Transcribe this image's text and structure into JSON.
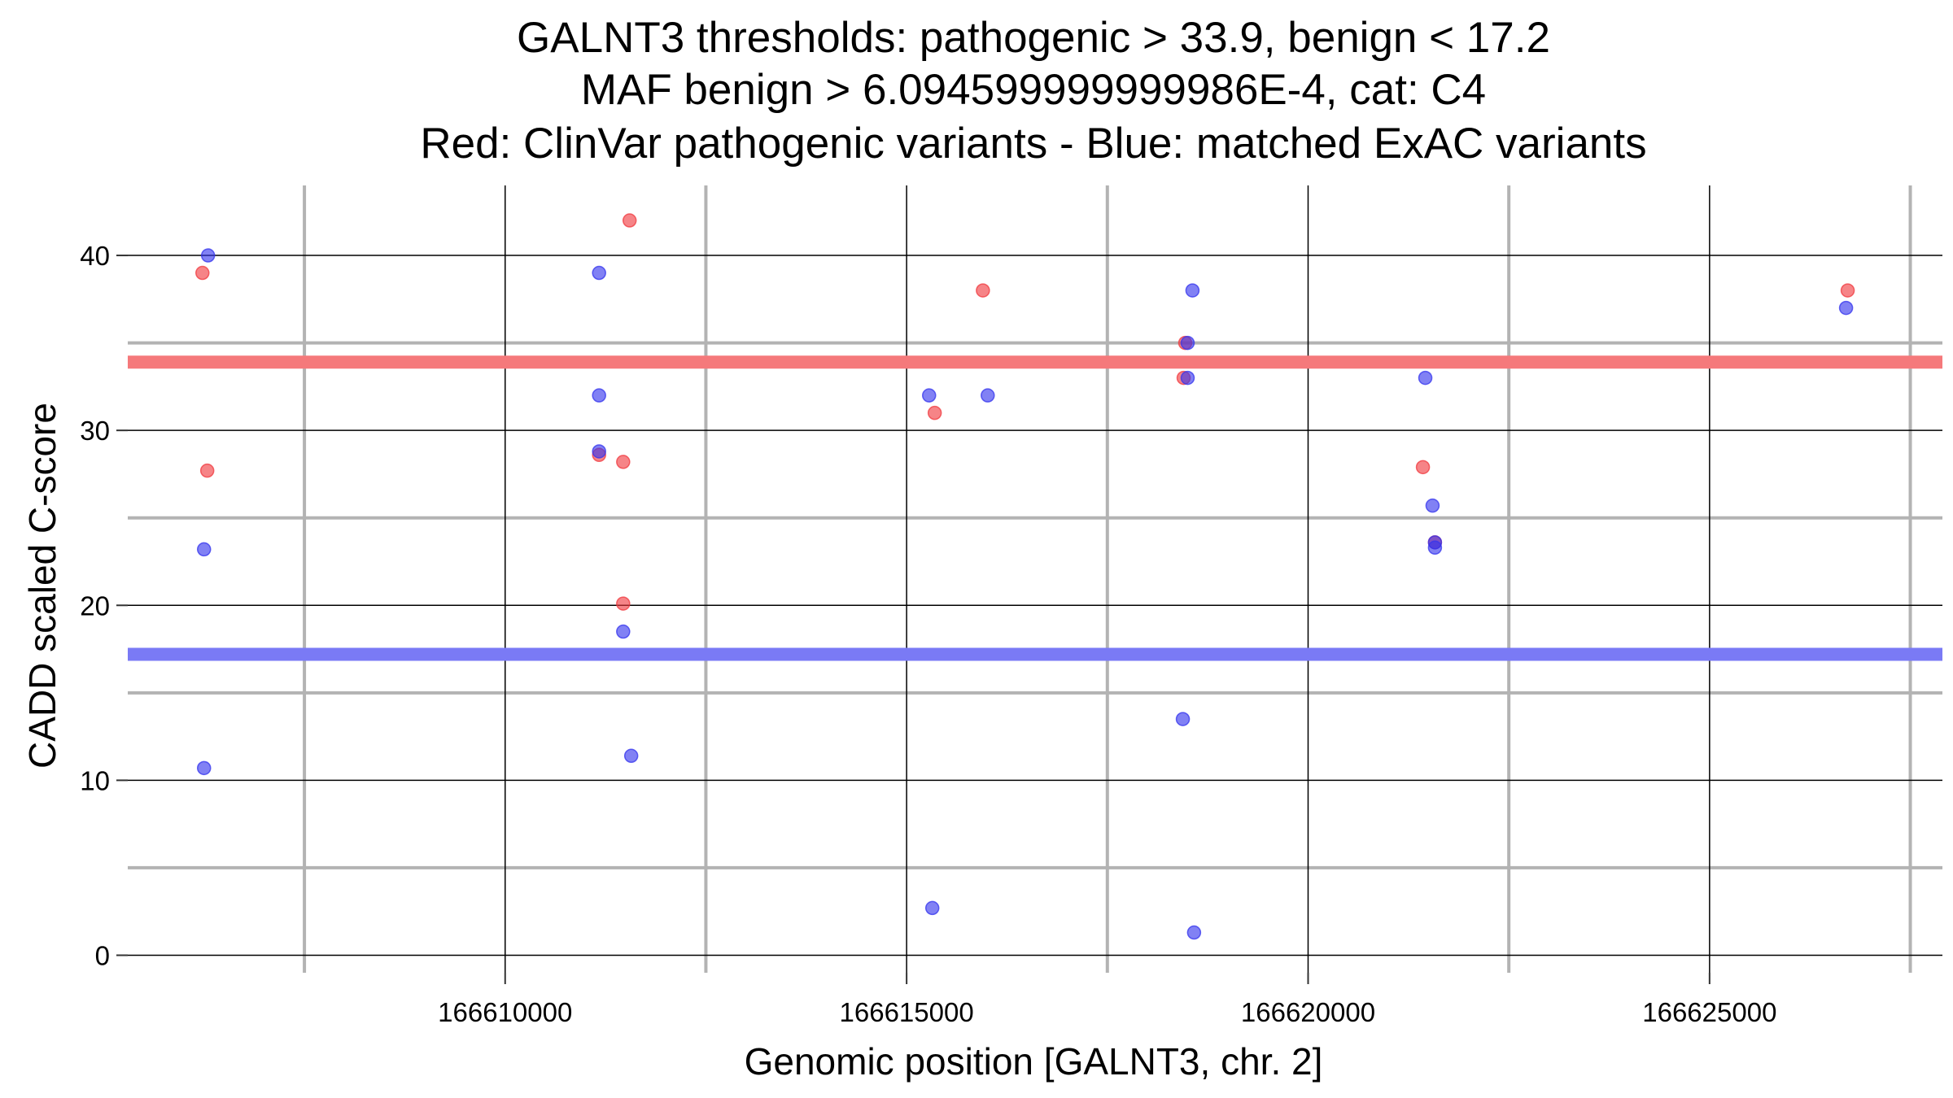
{
  "chart_data": {
    "type": "scatter",
    "title_lines": [
      "GALNT3 thresholds: pathogenic > 33.9, benign < 17.2",
      "MAF benign > 6.094599999999986E-4, cat: C4",
      "Red: ClinVar pathogenic variants - Blue: matched ExAC variants"
    ],
    "xlabel": "Genomic position [GALNT3, chr. 2]",
    "ylabel": "CADD scaled C-score",
    "xlim": [
      166605300,
      166627900
    ],
    "ylim": [
      -1,
      44
    ],
    "x_major_ticks": [
      166610000,
      166615000,
      166620000,
      166625000
    ],
    "x_tick_labels": [
      "166610000",
      "166615000",
      "166620000",
      "166625000"
    ],
    "x_minor_ticks": [
      166607500,
      166612500,
      166617500,
      166622500,
      166627500
    ],
    "y_major_ticks": [
      0,
      10,
      20,
      30,
      40
    ],
    "y_tick_labels": [
      "0",
      "10",
      "20",
      "30",
      "40"
    ],
    "y_minor_ticks": [
      5,
      15,
      25,
      35
    ],
    "grid": true,
    "thresholds": [
      {
        "label": "pathogenic",
        "value": 33.9,
        "color": "#f5797b"
      },
      {
        "label": "benign",
        "value": 17.2,
        "color": "#7a7af5"
      }
    ],
    "colors": {
      "pathogenic": "#f0383d",
      "benign": "#3333ee"
    },
    "series": [
      {
        "color_key": "pathogenic",
        "points": [
          [
            166606230,
            39
          ],
          [
            166606290,
            27.7
          ],
          [
            166611170,
            28.6
          ],
          [
            166611470,
            28.2
          ],
          [
            166611470,
            20.1
          ],
          [
            166611550,
            42
          ],
          [
            166615350,
            31
          ],
          [
            166615950,
            38
          ],
          [
            166618450,
            33
          ],
          [
            166618470,
            35
          ],
          [
            166621430,
            27.9
          ],
          [
            166621580,
            23.6
          ],
          [
            166626720,
            38
          ]
        ]
      },
      {
        "color_key": "benign",
        "points": [
          [
            166606300,
            40
          ],
          [
            166606250,
            23.2
          ],
          [
            166606250,
            10.7
          ],
          [
            166611170,
            39
          ],
          [
            166611170,
            32
          ],
          [
            166611170,
            28.8
          ],
          [
            166611470,
            18.5
          ],
          [
            166611570,
            11.4
          ],
          [
            166615280,
            32
          ],
          [
            166615320,
            2.7
          ],
          [
            166616010,
            32
          ],
          [
            166618560,
            38
          ],
          [
            166618500,
            35
          ],
          [
            166618500,
            33
          ],
          [
            166618440,
            13.5
          ],
          [
            166618580,
            1.3
          ],
          [
            166621460,
            33
          ],
          [
            166621550,
            25.7
          ],
          [
            166621580,
            23.3
          ],
          [
            166621580,
            23.6
          ],
          [
            166626700,
            37
          ]
        ]
      }
    ]
  }
}
